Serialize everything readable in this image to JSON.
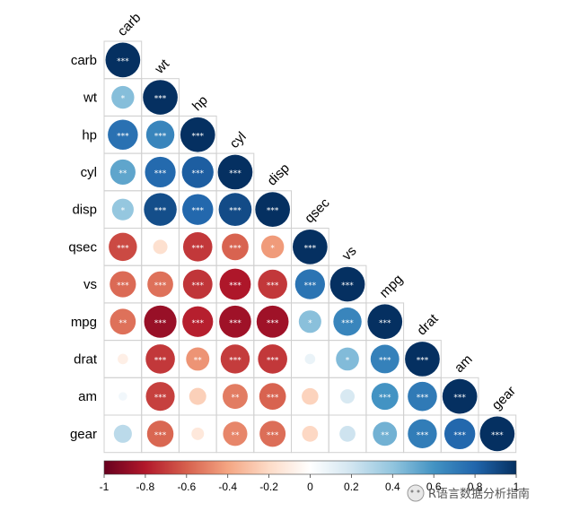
{
  "chart_data": {
    "type": "heatmap",
    "subtype": "correlation-matrix-lower-circle",
    "variables": [
      "carb",
      "wt",
      "hp",
      "cyl",
      "disp",
      "qsec",
      "vs",
      "mpg",
      "drat",
      "am",
      "gear"
    ],
    "matrix": [
      [
        1.0
      ],
      [
        0.43,
        1.0
      ],
      [
        0.75,
        0.66,
        1.0
      ],
      [
        0.53,
        0.78,
        0.83,
        1.0
      ],
      [
        0.39,
        0.89,
        0.79,
        0.9,
        1.0
      ],
      [
        -0.66,
        -0.17,
        -0.71,
        -0.59,
        -0.43,
        1.0
      ],
      [
        -0.57,
        -0.55,
        -0.72,
        -0.81,
        -0.71,
        0.74,
        1.0
      ],
      [
        -0.55,
        -0.87,
        -0.78,
        -0.85,
        -0.85,
        0.42,
        0.66,
        1.0
      ],
      [
        -0.09,
        -0.71,
        -0.45,
        -0.7,
        -0.71,
        0.09,
        0.44,
        0.68,
        1.0
      ],
      [
        0.06,
        -0.69,
        -0.24,
        -0.52,
        -0.59,
        -0.23,
        0.17,
        0.6,
        0.71,
        1.0
      ],
      [
        0.27,
        -0.58,
        -0.13,
        -0.49,
        -0.56,
        -0.21,
        0.21,
        0.48,
        0.7,
        0.79,
        1.0
      ]
    ],
    "significance": [
      [
        "***"
      ],
      [
        "*",
        "***"
      ],
      [
        "***",
        "***",
        "***"
      ],
      [
        "**",
        "***",
        "***",
        "***"
      ],
      [
        "*",
        "***",
        "***",
        "***",
        "***"
      ],
      [
        "***",
        "",
        "***",
        "***",
        "*",
        "***"
      ],
      [
        "***",
        "***",
        "***",
        "***",
        "***",
        "***",
        "***"
      ],
      [
        "**",
        "***",
        "***",
        "***",
        "***",
        "*",
        "***",
        "***"
      ],
      [
        "",
        "***",
        "**",
        "***",
        "***",
        "",
        "*",
        "***",
        "***"
      ],
      [
        "",
        "***",
        "",
        "**",
        "***",
        "",
        "",
        "***",
        "***",
        "***"
      ],
      [
        "",
        "***",
        "",
        "**",
        "***",
        "",
        "",
        "**",
        "***",
        "***",
        "***"
      ]
    ],
    "colorbar": {
      "ticks": [
        "-1",
        "-0.8",
        "-0.6",
        "-0.4",
        "-0.2",
        "0",
        "0.2",
        "0.4",
        "0.6",
        "0.8",
        "1"
      ],
      "range": [
        -1,
        1
      ],
      "colors": [
        "#67001F",
        "#B2182B",
        "#D6604D",
        "#F4A582",
        "#FDDBC7",
        "#FFFFFF",
        "#D1E5F0",
        "#92C5DE",
        "#4393C3",
        "#2166AC",
        "#053061"
      ]
    }
  },
  "watermark": {
    "text": "R语言数据分析指南"
  }
}
